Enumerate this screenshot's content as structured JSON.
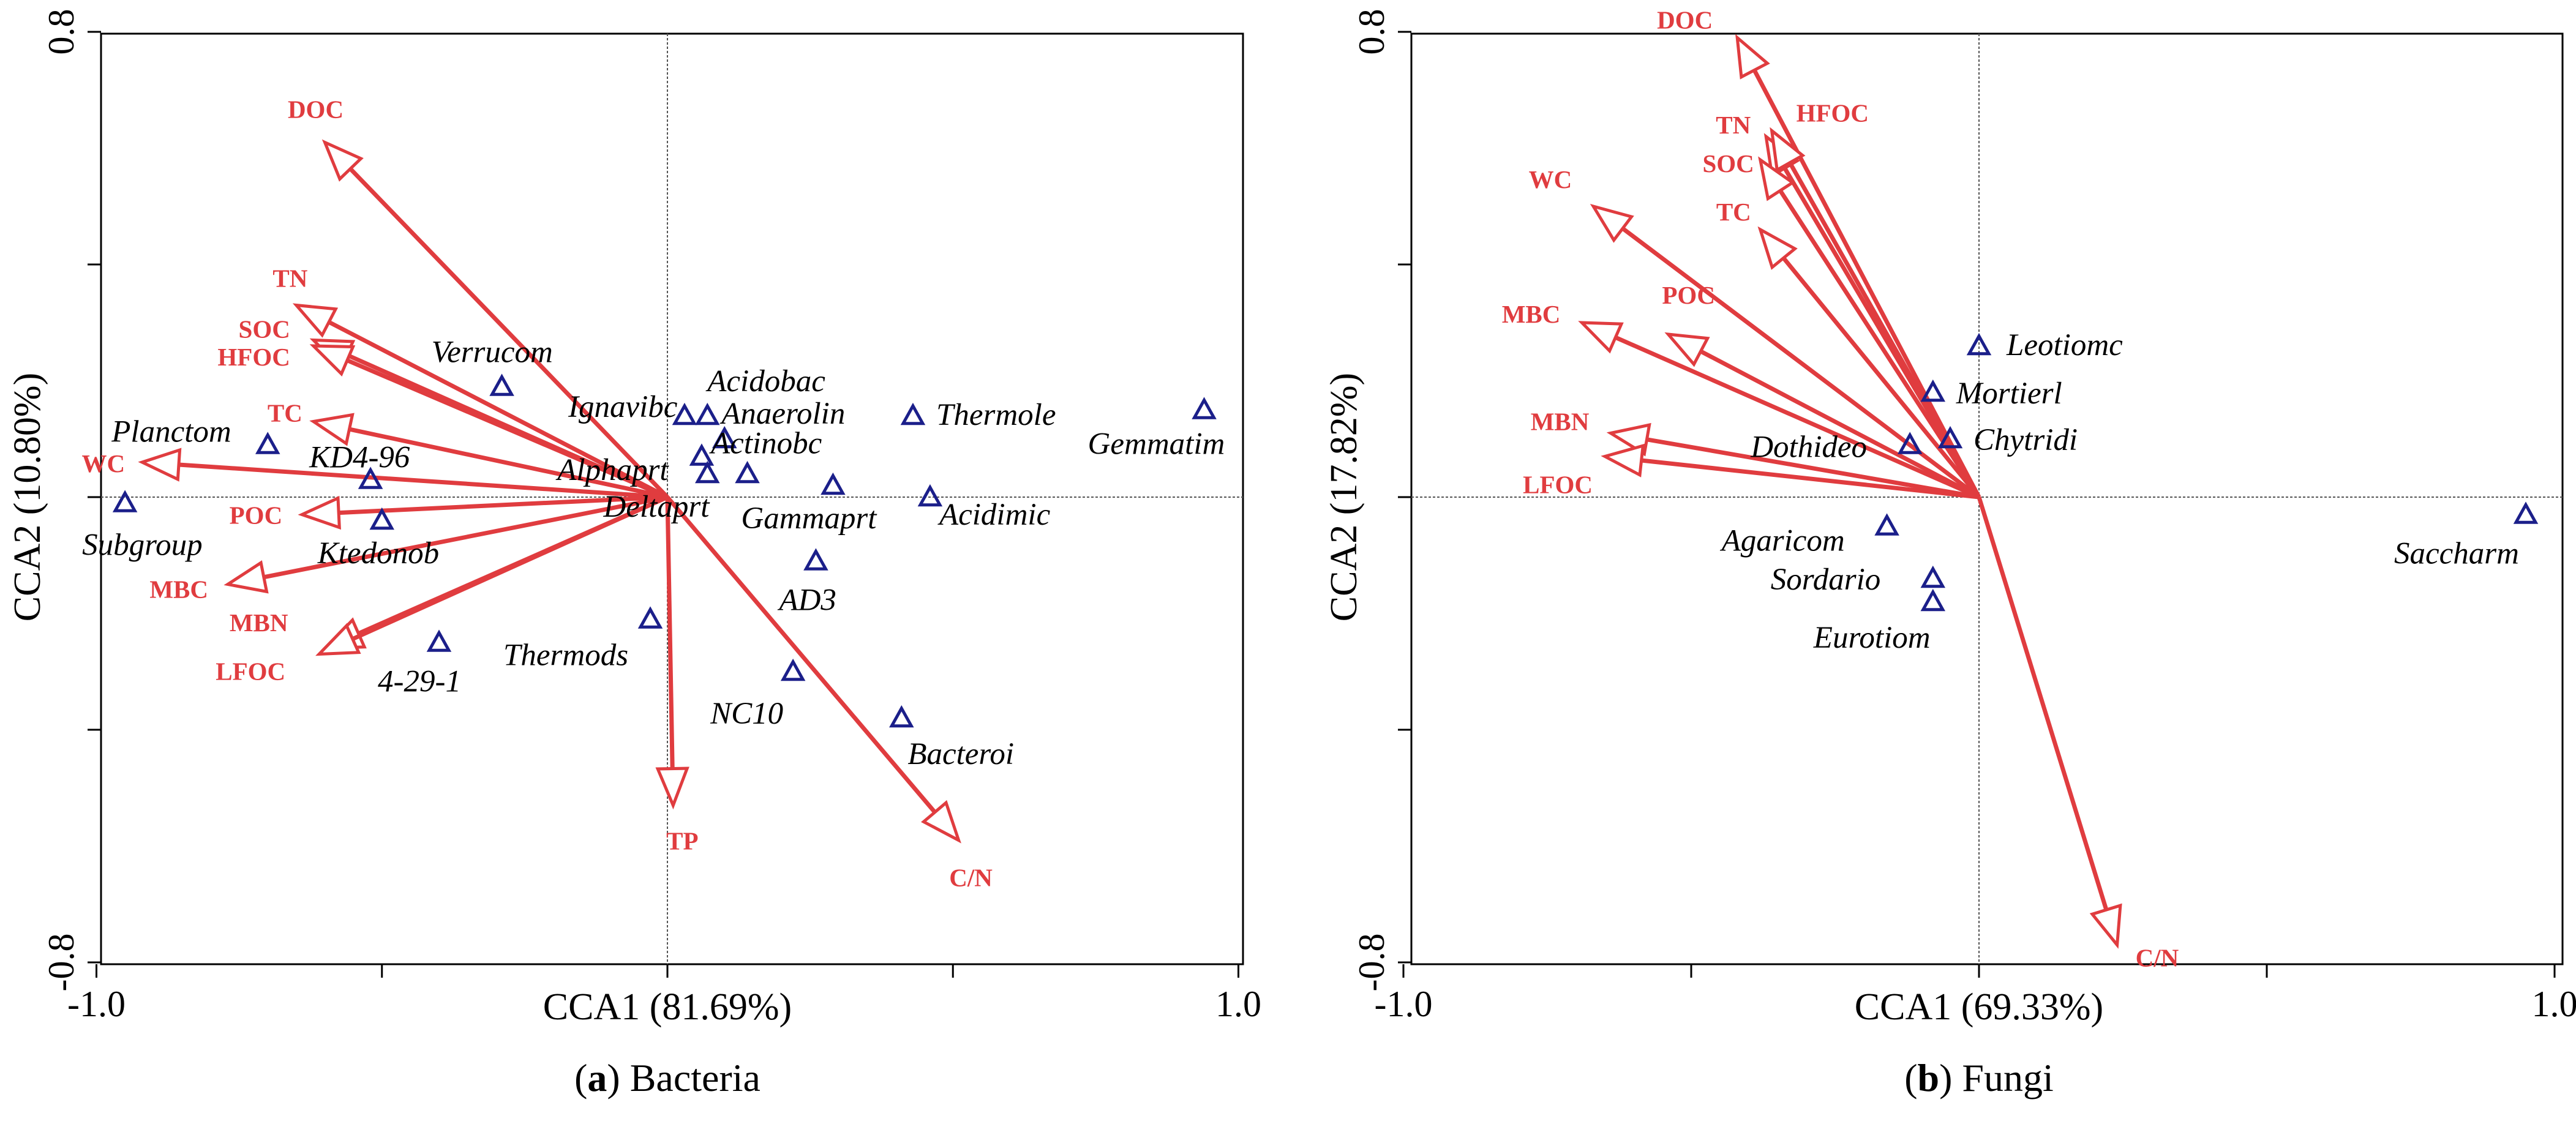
{
  "colors": {
    "environment": "#e03c3f",
    "taxa": "#1b1f8a",
    "axis": "#000000"
  },
  "chart_data": [
    {
      "type": "scatter",
      "subtype": "cca-biplot",
      "caption_letter": "a",
      "caption_text": " Bacteria",
      "xlabel": "CCA1  (81.69%)",
      "ylabel": "CCA2  (10.80%)",
      "xlim": [
        -1.0,
        1.0
      ],
      "ylim": [
        -0.8,
        0.8
      ],
      "x_tick_labels": [
        "-1.0",
        "1.0"
      ],
      "y_tick_labels": [
        "0.8",
        "-0.8"
      ],
      "minor_x_ticks": [
        -0.5,
        0.0,
        0.5
      ],
      "minor_y_ticks": [
        -0.4,
        0.0,
        0.4
      ],
      "vectors": [
        {
          "label": "DOC",
          "x": -0.6,
          "y": 0.61
        },
        {
          "label": "TN",
          "x": -0.65,
          "y": 0.33
        },
        {
          "label": "SOC",
          "x": -0.62,
          "y": 0.27
        },
        {
          "label": "HFOC",
          "x": -0.62,
          "y": 0.26
        },
        {
          "label": "TC",
          "x": -0.62,
          "y": 0.13
        },
        {
          "label": "WC",
          "x": -0.92,
          "y": 0.06
        },
        {
          "label": "POC",
          "x": -0.64,
          "y": -0.03
        },
        {
          "label": "MBC",
          "x": -0.77,
          "y": -0.15
        },
        {
          "label": "MBN",
          "x": -0.6,
          "y": -0.26
        },
        {
          "label": "LFOC",
          "x": -0.61,
          "y": -0.27
        },
        {
          "label": "TP",
          "x": 0.01,
          "y": -0.53
        },
        {
          "label": "C/N",
          "x": 0.51,
          "y": -0.59
        }
      ],
      "points": [
        {
          "label": "Verrucom",
          "x": -0.29,
          "y": 0.19
        },
        {
          "label": "Ignavibc",
          "x": 0.03,
          "y": 0.14
        },
        {
          "label": "Acidobac",
          "x": 0.07,
          "y": 0.14
        },
        {
          "label": "Anaerolin",
          "x": 0.1,
          "y": 0.1
        },
        {
          "label": "Actinobc",
          "x": 0.06,
          "y": 0.07
        },
        {
          "label": "Alphaprt",
          "x": 0.07,
          "y": 0.04
        },
        {
          "label": "Deltaprt",
          "x": 0.14,
          "y": 0.04
        },
        {
          "label": "Gammaprt",
          "x": 0.29,
          "y": 0.02
        },
        {
          "label": "Thermole",
          "x": 0.43,
          "y": 0.14
        },
        {
          "label": "Acidimic",
          "x": 0.46,
          "y": 0.0
        },
        {
          "label": "Gemmatim",
          "x": 0.94,
          "y": 0.15
        },
        {
          "label": "Planctom",
          "x": -0.7,
          "y": 0.09
        },
        {
          "label": "KD4-96",
          "x": -0.52,
          "y": 0.03
        },
        {
          "label": "Subgroup",
          "x": -0.95,
          "y": -0.01
        },
        {
          "label": "Ktedonob",
          "x": -0.5,
          "y": -0.04
        },
        {
          "label": "4-29-1",
          "x": -0.4,
          "y": -0.25
        },
        {
          "label": "Thermods",
          "x": -0.03,
          "y": -0.21
        },
        {
          "label": "AD3",
          "x": 0.26,
          "y": -0.11
        },
        {
          "label": "NC10",
          "x": 0.22,
          "y": -0.3
        },
        {
          "label": "Bacteroi",
          "x": 0.41,
          "y": -0.38
        }
      ]
    },
    {
      "type": "scatter",
      "subtype": "cca-biplot",
      "caption_letter": "b",
      "caption_text": " Fungi",
      "xlabel": "CCA1  (69.33%)",
      "ylabel": "CCA2  (17.82%)",
      "xlim": [
        -1.0,
        1.0
      ],
      "ylim": [
        -0.8,
        0.8
      ],
      "x_tick_labels": [
        "-1.0",
        "1.0"
      ],
      "y_tick_labels": [
        "0.8",
        "-0.8"
      ],
      "minor_x_ticks": [
        -0.5,
        0.0,
        0.5
      ],
      "minor_y_ticks": [
        -0.4,
        0.0,
        0.4
      ],
      "vectors": [
        {
          "label": "DOC",
          "x": -0.42,
          "y": 0.79
        },
        {
          "label": "TN",
          "x": -0.37,
          "y": 0.62
        },
        {
          "label": "HFOC",
          "x": -0.36,
          "y": 0.63
        },
        {
          "label": "SOC",
          "x": -0.38,
          "y": 0.58
        },
        {
          "label": "WC",
          "x": -0.67,
          "y": 0.5
        },
        {
          "label": "TC",
          "x": -0.38,
          "y": 0.46
        },
        {
          "label": "MBC",
          "x": -0.69,
          "y": 0.3
        },
        {
          "label": "POC",
          "x": -0.54,
          "y": 0.28
        },
        {
          "label": "MBN",
          "x": -0.64,
          "y": 0.11
        },
        {
          "label": "LFOC",
          "x": -0.65,
          "y": 0.07
        },
        {
          "label": "C/N",
          "x": 0.24,
          "y": -0.77
        }
      ],
      "points": [
        {
          "label": "Leotiomc",
          "x": 0.0,
          "y": 0.26
        },
        {
          "label": "Mortierl",
          "x": -0.08,
          "y": 0.18
        },
        {
          "label": "Chytridi",
          "x": -0.05,
          "y": 0.1
        },
        {
          "label": "Dothideo",
          "x": -0.12,
          "y": 0.09
        },
        {
          "label": "Agaricom",
          "x": -0.16,
          "y": -0.05
        },
        {
          "label": "Sordario",
          "x": -0.08,
          "y": -0.14
        },
        {
          "label": "Eurotiom",
          "x": -0.08,
          "y": -0.18
        },
        {
          "label": "Saccharm",
          "x": 0.95,
          "y": -0.03
        }
      ]
    }
  ]
}
